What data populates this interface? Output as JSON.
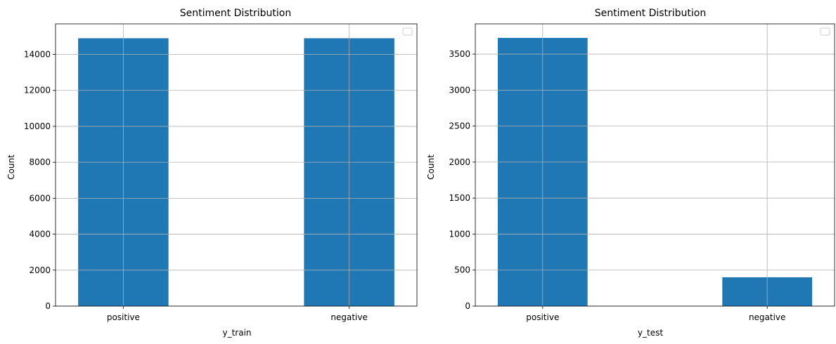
{
  "colors": {
    "bar": "#1f77b4",
    "grid": "#b0b0b0",
    "axes": "#000000",
    "legend_border": "#cccccc"
  },
  "chart_data": [
    {
      "type": "bar",
      "title": "Sentiment Distribution",
      "xlabel": "y_train",
      "ylabel": "Count",
      "categories": [
        "positive",
        "negative"
      ],
      "values": [
        14900,
        14900
      ],
      "ylim": [
        0,
        15700
      ],
      "yticks": [
        0,
        2000,
        4000,
        6000,
        8000,
        10000,
        12000,
        14000
      ],
      "grid": true,
      "legend": {
        "placement": "upper-right",
        "entries": []
      }
    },
    {
      "type": "bar",
      "title": "Sentiment Distribution",
      "xlabel": "y_test",
      "ylabel": "Count",
      "categories": [
        "positive",
        "negative"
      ],
      "values": [
        3725,
        400
      ],
      "ylim": [
        0,
        3920
      ],
      "yticks": [
        0,
        500,
        1000,
        1500,
        2000,
        2500,
        3000,
        3500
      ],
      "grid": true,
      "legend": {
        "placement": "upper-right",
        "entries": []
      }
    }
  ]
}
